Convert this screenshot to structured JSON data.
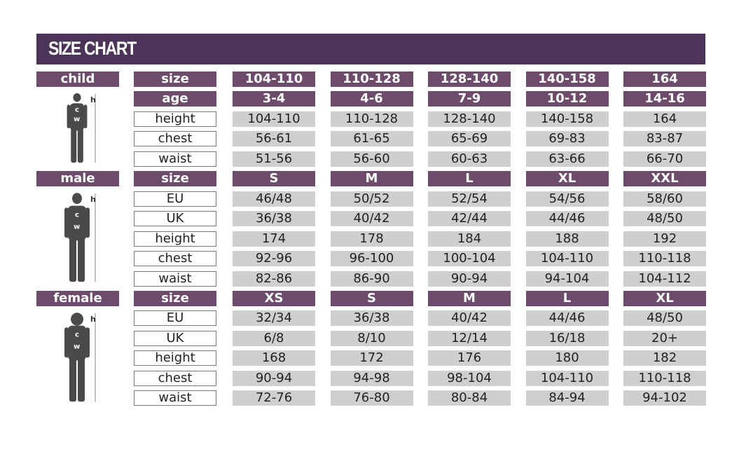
{
  "title": "SIZE CHART",
  "colors": {
    "title_bar": "#4b3458",
    "header_cell": "#6d4b6b",
    "value_cell": "#cfcfcf"
  },
  "sections": [
    {
      "group": "child",
      "figure_icon": "child-silhouette-icon",
      "rows": [
        {
          "label": "size",
          "header": true,
          "values": [
            "104-110",
            "110-128",
            "128-140",
            "140-158",
            "164"
          ]
        },
        {
          "label": "age",
          "header": true,
          "values": [
            "3-4",
            "4-6",
            "7-9",
            "10-12",
            "14-16"
          ]
        },
        {
          "label": "height",
          "values": [
            "104-110",
            "110-128",
            "128-140",
            "140-158",
            "164"
          ]
        },
        {
          "label": "chest",
          "values": [
            "56-61",
            "61-65",
            "65-69",
            "69-83",
            "83-87"
          ]
        },
        {
          "label": "waist",
          "values": [
            "51-56",
            "56-60",
            "60-63",
            "63-66",
            "66-70"
          ]
        }
      ]
    },
    {
      "group": "male",
      "figure_icon": "male-silhouette-icon",
      "rows": [
        {
          "label": "size",
          "header": true,
          "values": [
            "S",
            "M",
            "L",
            "XL",
            "XXL"
          ]
        },
        {
          "label": "EU",
          "values": [
            "46/48",
            "50/52",
            "52/54",
            "54/56",
            "58/60"
          ]
        },
        {
          "label": "UK",
          "values": [
            "36/38",
            "40/42",
            "42/44",
            "44/46",
            "48/50"
          ]
        },
        {
          "label": "height",
          "values": [
            "174",
            "178",
            "184",
            "188",
            "192"
          ]
        },
        {
          "label": "chest",
          "values": [
            "92-96",
            "96-100",
            "100-104",
            "104-110",
            "110-118"
          ]
        },
        {
          "label": "waist",
          "values": [
            "82-86",
            "86-90",
            "90-94",
            "94-104",
            "104-112"
          ]
        }
      ]
    },
    {
      "group": "female",
      "figure_icon": "female-silhouette-icon",
      "rows": [
        {
          "label": "size",
          "header": true,
          "values": [
            "XS",
            "S",
            "M",
            "L",
            "XL"
          ]
        },
        {
          "label": "EU",
          "values": [
            "32/34",
            "36/38",
            "40/42",
            "44/46",
            "48/50"
          ]
        },
        {
          "label": "UK",
          "values": [
            "6/8",
            "8/10",
            "12/14",
            "16/18",
            "20+"
          ]
        },
        {
          "label": "height",
          "values": [
            "168",
            "172",
            "176",
            "180",
            "182"
          ]
        },
        {
          "label": "chest",
          "values": [
            "90-94",
            "94-98",
            "98-104",
            "104-110",
            "110-118"
          ]
        },
        {
          "label": "waist",
          "values": [
            "72-76",
            "76-80",
            "80-84",
            "84-94",
            "94-102"
          ]
        }
      ]
    }
  ],
  "figure_marks": {
    "height": "h",
    "chest": "c",
    "waist": "w"
  }
}
